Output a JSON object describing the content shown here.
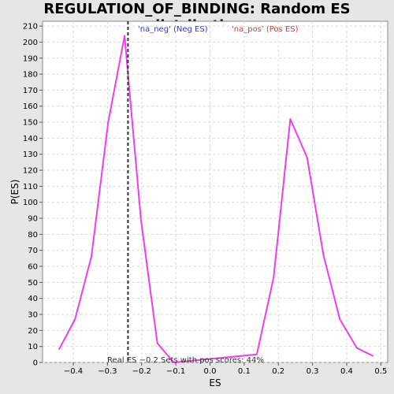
{
  "chart_data": {
    "type": "line",
    "title": "REGULATION_OF_BINDING: Random ES distribution",
    "xlabel": "ES",
    "ylabel": "P(ES)",
    "xlim": [
      -0.49,
      0.52
    ],
    "ylim": [
      0,
      213
    ],
    "x_ticks": [
      -0.4,
      -0.3,
      -0.2,
      -0.1,
      0.0,
      0.1,
      0.2,
      0.3,
      0.4,
      0.5
    ],
    "x_tick_labels": [
      "−0.4",
      "−0.3",
      "−0.2",
      "−0.1",
      "0.0",
      "0.1",
      "0.2",
      "0.3",
      "0.4",
      "0.5"
    ],
    "y_ticks": [
      0,
      10,
      20,
      30,
      40,
      50,
      60,
      70,
      80,
      90,
      100,
      110,
      120,
      130,
      140,
      150,
      160,
      170,
      180,
      190,
      200,
      210
    ],
    "grid": true,
    "series": [
      {
        "color": "#ee3ee8",
        "x": [
          -0.442,
          -0.395,
          -0.347,
          -0.298,
          -0.25,
          -0.202,
          -0.154,
          -0.106,
          0.137,
          0.186,
          0.235,
          0.284,
          0.332,
          0.38,
          0.43,
          0.478
        ],
        "y": [
          8,
          27,
          66,
          150,
          204,
          89,
          12,
          0,
          5,
          53,
          152,
          128,
          67,
          27,
          9,
          4
        ]
      }
    ],
    "real_es": {
      "x": -0.24,
      "label": "Real ES −0.2",
      "color": "#333333"
    },
    "legend": [
      {
        "label": "'na_neg' (Neg ES)",
        "color": "#3333dd"
      },
      {
        "label": "'na_pos' (Pos ES)",
        "color": "#dd3333"
      }
    ],
    "annotation": "Sets with pos scores: 44%"
  }
}
